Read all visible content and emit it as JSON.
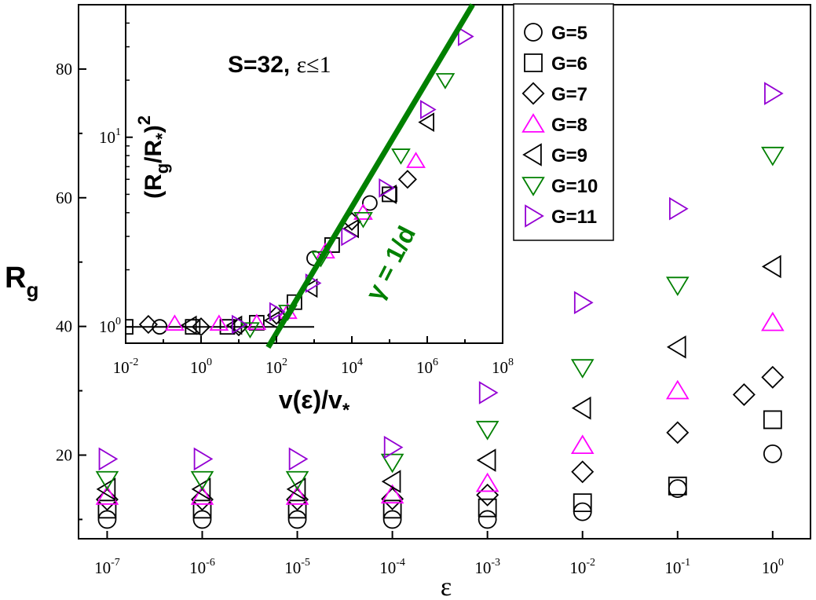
{
  "chart_data": [
    {
      "type": "scatter",
      "xlabel": "ε",
      "ylabel": "R",
      "ylabel_sub": "g",
      "x_scale": "log",
      "xlim": [
        5e-08,
        2.5
      ],
      "ylim": [
        7,
        90
      ],
      "x_ticks": [
        1e-07,
        1e-06,
        1e-05,
        0.0001,
        0.001,
        0.01,
        0.1,
        1
      ],
      "x_tick_labels": [
        {
          "base": "10",
          "exp": "-7"
        },
        {
          "base": "10",
          "exp": "-6"
        },
        {
          "base": "10",
          "exp": "-5"
        },
        {
          "base": "10",
          "exp": "-4"
        },
        {
          "base": "10",
          "exp": "-3"
        },
        {
          "base": "10",
          "exp": "-2"
        },
        {
          "base": "10",
          "exp": "-1"
        },
        {
          "base": "10",
          "exp": "0"
        }
      ],
      "y_ticks": [
        20,
        40,
        60,
        80
      ],
      "y_tick_labels": [
        "20",
        "40",
        "60",
        "80"
      ],
      "grid": false,
      "legend_position": "top-right",
      "series": [
        {
          "name": "G=5",
          "marker": "circle",
          "color": "#000000",
          "points": [
            [
              1e-07,
              10
            ],
            [
              1e-06,
              10
            ],
            [
              1e-05,
              10
            ],
            [
              0.0001,
              10
            ],
            [
              0.001,
              10
            ],
            [
              0.01,
              11.2
            ],
            [
              0.1,
              14.8
            ],
            [
              1,
              20.2
            ]
          ]
        },
        {
          "name": "G=6",
          "marker": "square",
          "color": "#000000",
          "points": [
            [
              1e-07,
              11.6
            ],
            [
              1e-06,
              11.6
            ],
            [
              1e-05,
              11.6
            ],
            [
              0.0001,
              11.6
            ],
            [
              0.001,
              11.8
            ],
            [
              0.01,
              12.6
            ],
            [
              0.1,
              15.2
            ],
            [
              1,
              25.5
            ]
          ]
        },
        {
          "name": "G=7",
          "marker": "diamond",
          "color": "#000000",
          "points": [
            [
              1e-07,
              13.1
            ],
            [
              1e-06,
              13.1
            ],
            [
              1e-05,
              13.1
            ],
            [
              0.0001,
              13.2
            ],
            [
              0.001,
              13.8
            ],
            [
              0.01,
              17.4
            ],
            [
              0.1,
              23.5
            ],
            [
              0.5,
              29.4
            ],
            [
              1,
              32.1
            ]
          ]
        },
        {
          "name": "G=8",
          "marker": "triangle-up",
          "color": "#ff00ff",
          "points": [
            [
              1e-07,
              13.6
            ],
            [
              1e-06,
              13.6
            ],
            [
              1e-05,
              13.6
            ],
            [
              0.0001,
              13.8
            ],
            [
              0.001,
              15.6
            ],
            [
              0.01,
              21.5
            ],
            [
              0.1,
              30.0
            ],
            [
              1,
              40.6
            ]
          ]
        },
        {
          "name": "G=9",
          "marker": "triangle-left",
          "color": "#000000",
          "points": [
            [
              1e-07,
              14.7
            ],
            [
              1e-06,
              14.7
            ],
            [
              1e-05,
              14.7
            ],
            [
              0.0001,
              15.9
            ],
            [
              0.001,
              19.2
            ],
            [
              0.01,
              27.3
            ],
            [
              0.1,
              36.8
            ],
            [
              1,
              49.3
            ]
          ]
        },
        {
          "name": "G=10",
          "marker": "triangle-down",
          "color": "#008000",
          "points": [
            [
              1e-07,
              16.2
            ],
            [
              1e-06,
              16.2
            ],
            [
              1e-05,
              16.2
            ],
            [
              0.0001,
              18.9
            ],
            [
              0.001,
              24.0
            ],
            [
              0.01,
              33.6
            ],
            [
              0.1,
              46.4
            ],
            [
              1,
              66.6
            ]
          ]
        },
        {
          "name": "G=11",
          "marker": "triangle-right",
          "color": "#9400d3",
          "points": [
            [
              1e-07,
              19.4
            ],
            [
              1e-06,
              19.4
            ],
            [
              1e-05,
              19.4
            ],
            [
              0.0001,
              21.2
            ],
            [
              0.001,
              29.7
            ],
            [
              0.01,
              43.7
            ],
            [
              0.1,
              58.3
            ],
            [
              1,
              76.2
            ]
          ]
        }
      ]
    },
    {
      "type": "scatter",
      "panel": "inset",
      "title": "S=32, ",
      "title_symbol": "ε≤1",
      "xlabel": "v(ε)/v",
      "xlabel_sub": "*",
      "ylabel": "(R",
      "ylabel_sub": "g",
      "ylabel_mid": "/R",
      "ylabel_sub2": "*",
      "ylabel_tail": ")",
      "ylabel_sup": "2",
      "x_scale": "log",
      "y_scale": "log",
      "xlim": [
        0.01,
        100000000.0
      ],
      "ylim": [
        0.82,
        50
      ],
      "x_ticks": [
        0.01,
        1,
        100.0,
        10000.0,
        1000000.0,
        100000000.0
      ],
      "x_tick_labels": [
        {
          "base": "10",
          "exp": "-2"
        },
        {
          "base": "10",
          "exp": "0"
        },
        {
          "base": "10",
          "exp": "2"
        },
        {
          "base": "10",
          "exp": "4"
        },
        {
          "base": "10",
          "exp": "6"
        },
        {
          "base": "10",
          "exp": "8"
        }
      ],
      "y_ticks": [
        1,
        10
      ],
      "y_tick_labels": [
        {
          "base": "10",
          "exp": "0"
        },
        {
          "base": "10",
          "exp": "1"
        }
      ],
      "annotation": "γ = 1/d",
      "fit_line_color": "#008000",
      "grid": false,
      "plateau_line": {
        "x": [
          0.01,
          1000
        ],
        "y": 1
      },
      "fit_line": {
        "points": [
          [
            60,
            0.78
          ],
          [
            16000000.0,
            50
          ]
        ]
      },
      "series": [
        {
          "name": "G=5",
          "marker": "circle",
          "color": "#000000",
          "points": [
            [
              0.08,
              1.0
            ],
            [
              1000,
              2.3
            ],
            [
              30000,
              4.5
            ]
          ]
        },
        {
          "name": "G=6",
          "marker": "square",
          "color": "#000000",
          "points": [
            [
              0.01,
              1.0
            ],
            [
              0.6,
              1.0
            ],
            [
              5,
              1.0
            ],
            [
              30,
              1.05
            ],
            [
              300,
              1.35
            ],
            [
              3000,
              2.7
            ],
            [
              100000,
              5.0
            ]
          ]
        },
        {
          "name": "G=7",
          "marker": "diamond",
          "color": "#000000",
          "points": [
            [
              0.04,
              1.03
            ],
            [
              1,
              1.0
            ],
            [
              10,
              1.0
            ],
            [
              100,
              1.15
            ],
            [
              10000,
              3.6
            ],
            [
              300000,
              6.0
            ]
          ]
        },
        {
          "name": "G=8",
          "marker": "triangle-up",
          "color": "#ff00ff",
          "points": [
            [
              0.2,
              1.04
            ],
            [
              3,
              1.04
            ],
            [
              30,
              1.05
            ],
            [
              200,
              1.2
            ],
            [
              2000,
              2.5
            ],
            [
              20000,
              4.0
            ],
            [
              500000,
              7.5
            ]
          ]
        },
        {
          "name": "G=9",
          "marker": "triangle-left",
          "color": "#000000",
          "points": [
            [
              0.5,
              1.02
            ],
            [
              8,
              1.02
            ],
            [
              80,
              1.08
            ],
            [
              800,
              1.6
            ],
            [
              10000,
              3.3
            ],
            [
              100000,
              5.0
            ],
            [
              1000000,
              12
            ]
          ]
        },
        {
          "name": "G=10",
          "marker": "triangle-down",
          "color": "#008000",
          "points": [
            [
              20,
              0.97
            ],
            [
              200,
              1.2
            ],
            [
              1500,
              2.3
            ],
            [
              20000,
              3.7
            ],
            [
              200000,
              8.0
            ],
            [
              3000000,
              20
            ]
          ]
        },
        {
          "name": "G=11",
          "marker": "triangle-right",
          "color": "#9400d3",
          "points": [
            [
              10,
              1.03
            ],
            [
              100,
              1.2
            ],
            [
              900,
              1.7
            ],
            [
              8000,
              3.0
            ],
            [
              80000,
              5.4
            ],
            [
              1000000,
              14
            ],
            [
              10000000,
              34
            ]
          ]
        }
      ]
    }
  ]
}
